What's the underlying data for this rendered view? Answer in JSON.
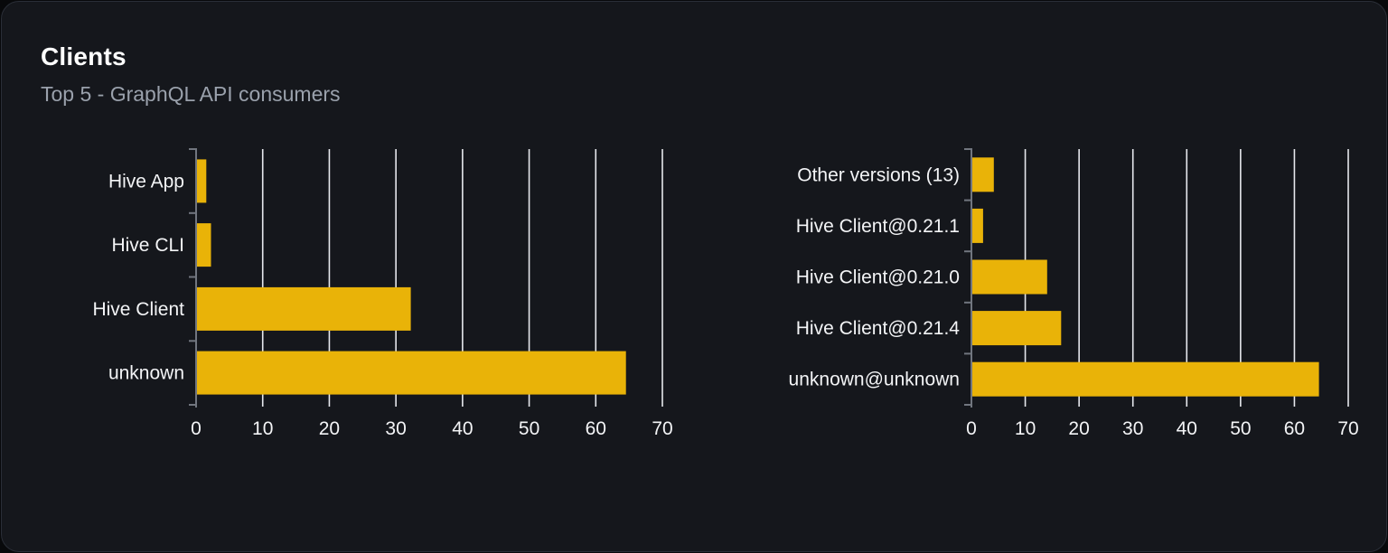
{
  "card": {
    "title": "Clients",
    "subtitle": "Top 5 - GraphQL API consumers"
  },
  "colors": {
    "page_bg": "#08090b",
    "card_bg": "#15171c",
    "card_border": "#2a2e37",
    "title": "#ffffff",
    "subtitle": "#9aa1ac",
    "bar": "#e9b308",
    "gridline": "#e6e8ed",
    "axis": "#71767f",
    "tick_label": "#f3f4f6",
    "category_label": "#f3f4f6"
  },
  "chart_data": [
    {
      "type": "bar",
      "name": "clients-by-name",
      "orientation": "horizontal",
      "categories": [
        "Hive App",
        "Hive CLI",
        "Hive Client",
        "unknown"
      ],
      "values": [
        1.4,
        2.1,
        32.1,
        64.4
      ],
      "xlim": [
        0,
        70
      ],
      "xticks": [
        0,
        10,
        20,
        30,
        40,
        50,
        60,
        70
      ],
      "grid": true,
      "legend": false,
      "xlabel": "",
      "ylabel": ""
    },
    {
      "type": "bar",
      "name": "clients-by-version",
      "orientation": "horizontal",
      "categories": [
        "Other versions (13)",
        "Hive Client@0.21.1",
        "Hive Client@0.21.0",
        "Hive Client@0.21.4",
        "unknown@unknown"
      ],
      "values": [
        4.0,
        2.0,
        13.9,
        16.5,
        64.4
      ],
      "xlim": [
        0,
        70
      ],
      "xticks": [
        0,
        10,
        20,
        30,
        40,
        50,
        60,
        70
      ],
      "grid": true,
      "legend": false,
      "xlabel": "",
      "ylabel": ""
    }
  ]
}
